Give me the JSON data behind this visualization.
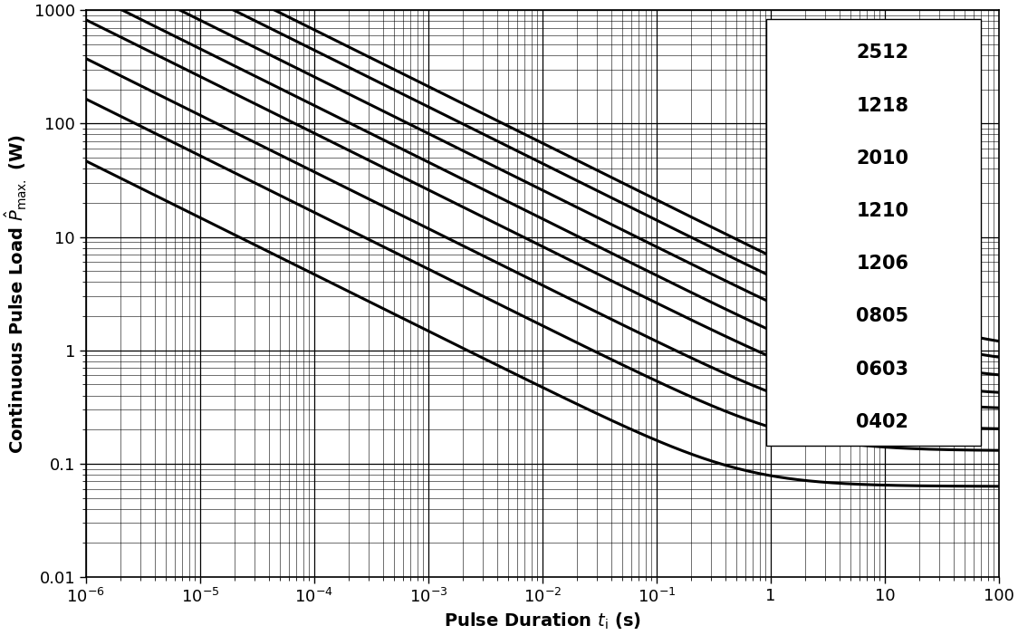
{
  "xlabel": "Pulse Duration $t_\\mathrm{i}$ (s)",
  "ylabel": "Continuous Pulse Load $\\hat{P}_\\mathrm{max.}$ (W)",
  "xlim": [
    1e-06,
    100
  ],
  "ylim": [
    0.01,
    1000
  ],
  "legend_labels": [
    "2512",
    "1218",
    "2010",
    "1210",
    "1206",
    "0805",
    "0603",
    "0402"
  ],
  "curves": {
    "2512": {
      "P_rated": 1.0,
      "t_thermal": 45.0
    },
    "1218": {
      "P_rated": 0.75,
      "t_thermal": 35.0
    },
    "2010": {
      "P_rated": 0.55,
      "t_thermal": 22.0
    },
    "1210": {
      "P_rated": 0.4,
      "t_thermal": 13.0
    },
    "1206": {
      "P_rated": 0.3,
      "t_thermal": 7.5
    },
    "0805": {
      "P_rated": 0.2,
      "t_thermal": 3.5
    },
    "0603": {
      "P_rated": 0.13,
      "t_thermal": 1.6
    },
    "0402": {
      "P_rated": 0.063,
      "t_thermal": 0.55
    }
  },
  "background_color": "#ffffff",
  "line_color": "#000000",
  "grid_major_color": "#000000",
  "grid_minor_color": "#555555",
  "grid_major_lw": 0.9,
  "grid_minor_lw": 0.4,
  "line_width": 2.2,
  "font_color": "#000000",
  "tick_labelsize": 13,
  "axis_labelsize": 14,
  "legend_fontsize": 15
}
